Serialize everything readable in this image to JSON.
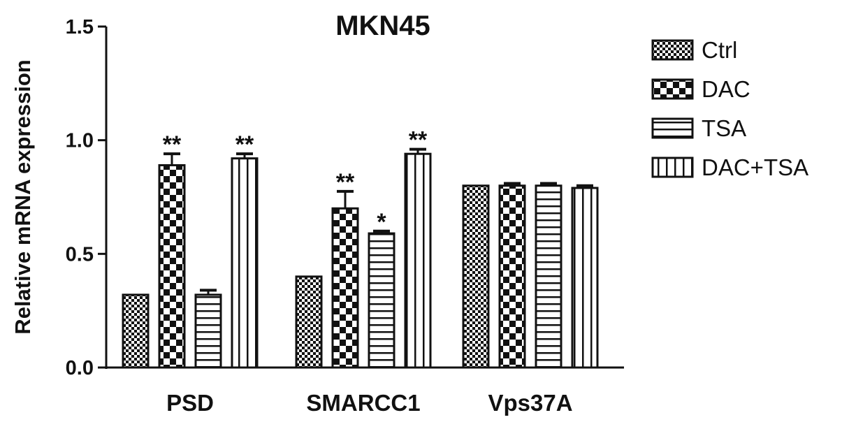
{
  "chart_data": {
    "type": "bar",
    "title": "MKN45",
    "ylabel": "Relative mRNA expression",
    "xlabel": "",
    "ylim": [
      0,
      1.5
    ],
    "yticks": [
      "0.0",
      "0.5",
      "1.0",
      "1.5"
    ],
    "categories": [
      "PSD",
      "SMARCC1",
      "Vps37A"
    ],
    "series": [
      {
        "name": "Ctrl",
        "pattern": "fine-checker",
        "values": [
          0.32,
          0.4,
          0.8
        ],
        "errors": [
          0.0,
          0.0,
          0.0
        ],
        "labels": [
          "",
          "",
          ""
        ]
      },
      {
        "name": "DAC",
        "pattern": "coarse-checker",
        "values": [
          0.89,
          0.7,
          0.8
        ],
        "errors": [
          0.05,
          0.075,
          0.01
        ],
        "labels": [
          "**",
          "**",
          ""
        ]
      },
      {
        "name": "TSA",
        "pattern": "horizontal-lines",
        "values": [
          0.32,
          0.59,
          0.8
        ],
        "errors": [
          0.02,
          0.01,
          0.01
        ],
        "labels": [
          "",
          "*",
          ""
        ]
      },
      {
        "name": "DAC+TSA",
        "pattern": "vertical-lines",
        "values": [
          0.92,
          0.94,
          0.79
        ],
        "errors": [
          0.02,
          0.02,
          0.01
        ],
        "labels": [
          "**",
          "**",
          ""
        ]
      }
    ],
    "legend_position": "right",
    "grid": false,
    "colors": {
      "ink": "#111111",
      "background": "#ffffff"
    }
  }
}
